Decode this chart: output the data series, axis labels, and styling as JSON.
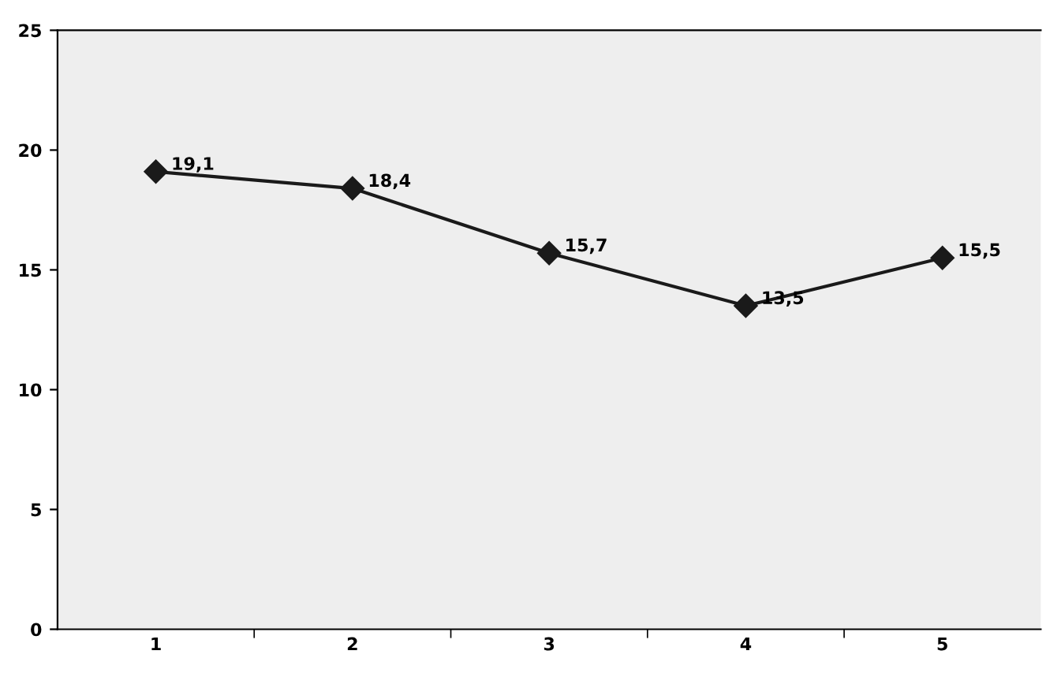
{
  "chart_data": {
    "type": "line",
    "categories": [
      "1",
      "2",
      "3",
      "4",
      "5"
    ],
    "series": [
      {
        "color": "#1a1a1a",
        "values": [
          19.1,
          18.4,
          15.7,
          13.5,
          15.5
        ],
        "value_labels": [
          "19,1",
          "18,4",
          "15,7",
          "13,5",
          "15,5"
        ]
      }
    ],
    "ylim": [
      0,
      25
    ],
    "yticks": [
      0,
      5,
      10,
      15,
      20,
      25
    ],
    "marker": "diamond",
    "line_style": "solid",
    "grid": false
  }
}
